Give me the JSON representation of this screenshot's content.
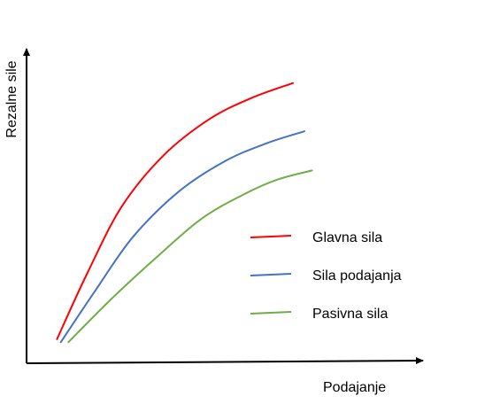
{
  "chart_data": {
    "type": "line",
    "xlabel": "Podajanje",
    "ylabel": "Rezalne sile",
    "xlim": [
      0,
      10
    ],
    "ylim": [
      0,
      10
    ],
    "grid": false,
    "ticks": false,
    "legend_position": "right",
    "series": [
      {
        "name": "Glavna sila",
        "color": "#ff0000",
        "x": [
          0.8,
          1.6,
          2.5,
          3.6,
          4.8,
          5.9,
          7.0
        ],
        "y": [
          0.8,
          3.0,
          5.2,
          6.9,
          8.1,
          8.8,
          9.3
        ]
      },
      {
        "name": "Sila podajanja",
        "color": "#4472c4",
        "x": [
          0.9,
          1.8,
          2.8,
          4.0,
          5.2,
          6.3,
          7.3
        ],
        "y": [
          0.7,
          2.4,
          4.2,
          5.7,
          6.7,
          7.3,
          7.7
        ]
      },
      {
        "name": "Pasivna sila",
        "color": "#70ad47",
        "x": [
          1.1,
          2.2,
          3.4,
          4.6,
          5.7,
          6.6,
          7.5
        ],
        "y": [
          0.7,
          2.1,
          3.5,
          4.8,
          5.6,
          6.1,
          6.4
        ]
      }
    ]
  }
}
